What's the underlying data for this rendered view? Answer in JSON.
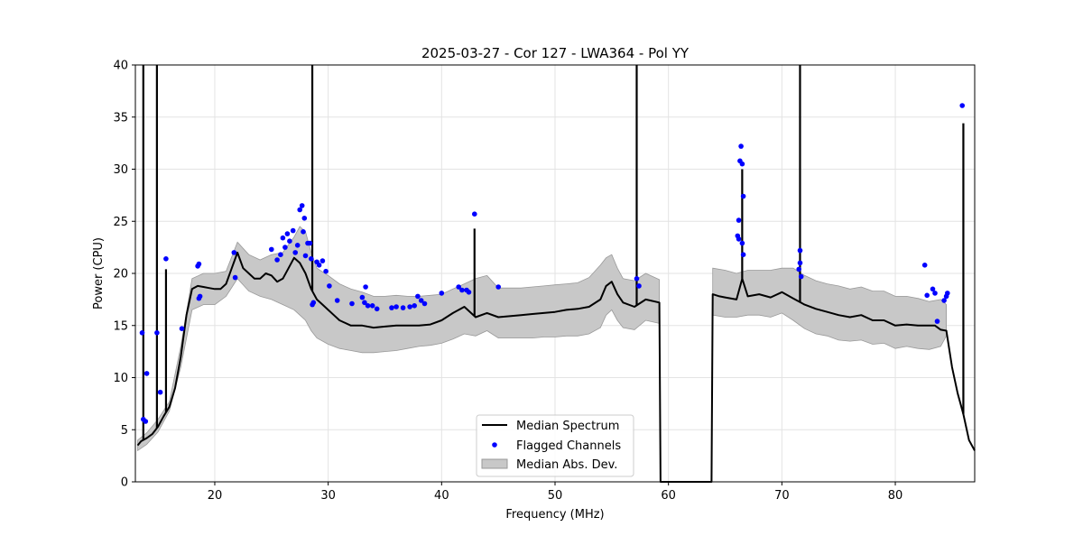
{
  "chart_data": {
    "type": "line",
    "title": "2025-03-27 - Cor 127 - LWA364 - Pol YY",
    "xlabel": "Frequency (MHz)",
    "ylabel": "Power (CPU)",
    "xlim": [
      13.0,
      87.0
    ],
    "ylim": [
      0,
      40
    ],
    "xticks": [
      20,
      30,
      40,
      50,
      60,
      70,
      80
    ],
    "yticks": [
      0,
      5,
      10,
      15,
      20,
      25,
      30,
      35,
      40
    ],
    "grid": true,
    "legend_position": "lower center",
    "colors": {
      "median": "#000000",
      "flagged": "#0000ff",
      "mad_fill": "#c8c8c8",
      "mad_edge": "#999999"
    },
    "series": [
      {
        "name": "Median Spectrum",
        "kind": "line",
        "x": [
          13.2,
          13.5,
          14.0,
          14.5,
          15.0,
          15.5,
          16.0,
          16.5,
          17.0,
          17.5,
          18.0,
          18.5,
          19.0,
          19.5,
          20.0,
          20.5,
          21.0,
          21.5,
          22.0,
          22.5,
          23.0,
          23.5,
          24.0,
          24.5,
          25.0,
          25.5,
          26.0,
          26.5,
          27.0,
          27.5,
          28.0,
          28.5,
          29.0,
          29.5,
          30.0,
          30.5,
          31.0,
          32.0,
          33.0,
          34.0,
          35.0,
          36.0,
          37.0,
          38.0,
          39.0,
          40.0,
          41.0,
          42.0,
          43.0,
          44.0,
          45.0,
          46.0,
          47.0,
          48.0,
          49.0,
          50.0,
          51.0,
          52.0,
          53.0,
          54.0,
          54.5,
          55.0,
          55.5,
          56.0,
          57.0,
          58.0,
          59.2,
          59.3,
          63.8,
          63.9,
          64.5,
          65.0,
          66.0,
          66.5,
          67.0,
          68.0,
          69.0,
          70.0,
          71.0,
          72.0,
          73.0,
          74.0,
          75.0,
          76.0,
          77.0,
          78.0,
          79.0,
          80.0,
          81.0,
          82.0,
          83.0,
          83.5,
          84.0,
          84.5,
          85.0,
          85.5,
          86.0,
          86.5,
          87.0
        ],
        "y": [
          3.5,
          3.9,
          4.2,
          4.6,
          5.3,
          6.3,
          7.2,
          9.0,
          12.0,
          16.0,
          18.5,
          18.8,
          18.7,
          18.6,
          18.5,
          18.5,
          19.0,
          20.5,
          22.0,
          20.5,
          20.0,
          19.5,
          19.5,
          20.0,
          19.8,
          19.2,
          19.5,
          20.5,
          21.5,
          21.0,
          20.0,
          18.5,
          17.5,
          17.0,
          16.5,
          16.0,
          15.5,
          15.0,
          15.0,
          14.8,
          14.9,
          15.0,
          15.0,
          15.0,
          15.1,
          15.5,
          16.2,
          16.8,
          15.8,
          16.2,
          15.8,
          15.9,
          16.0,
          16.1,
          16.2,
          16.3,
          16.5,
          16.6,
          16.8,
          17.5,
          18.8,
          19.2,
          18.0,
          17.2,
          16.8,
          17.5,
          17.2,
          0.0,
          0.0,
          18.0,
          17.8,
          17.7,
          17.5,
          19.5,
          17.8,
          18.0,
          17.7,
          18.2,
          17.6,
          17.0,
          16.6,
          16.3,
          16.0,
          15.8,
          16.0,
          15.5,
          15.5,
          15.0,
          15.1,
          15.0,
          15.0,
          15.0,
          14.6,
          14.5,
          11.0,
          8.5,
          6.5,
          4.0,
          3.0
        ],
        "spikes": [
          {
            "x": 13.7,
            "y": 40.0
          },
          {
            "x": 14.9,
            "y": 40.0
          },
          {
            "x": 15.7,
            "y": 20.4
          },
          {
            "x": 28.6,
            "y": 40.0
          },
          {
            "x": 42.9,
            "y": 24.3
          },
          {
            "x": 57.2,
            "y": 40.0
          },
          {
            "x": 66.5,
            "y": 30.0
          },
          {
            "x": 71.6,
            "y": 40.0
          },
          {
            "x": 86.0,
            "y": 34.4
          }
        ]
      },
      {
        "name": "Flagged Channels",
        "kind": "scatter",
        "points": [
          [
            13.6,
            14.3
          ],
          [
            13.7,
            6.0
          ],
          [
            13.9,
            5.8
          ],
          [
            14.0,
            10.4
          ],
          [
            14.9,
            14.3
          ],
          [
            15.2,
            8.6
          ],
          [
            15.7,
            21.4
          ],
          [
            17.1,
            14.7
          ],
          [
            18.5,
            20.7
          ],
          [
            18.6,
            20.9
          ],
          [
            18.6,
            17.6
          ],
          [
            18.7,
            17.8
          ],
          [
            21.7,
            22.0
          ],
          [
            21.8,
            19.6
          ],
          [
            25.0,
            22.3
          ],
          [
            25.5,
            21.3
          ],
          [
            25.8,
            21.8
          ],
          [
            26.0,
            23.4
          ],
          [
            26.2,
            22.5
          ],
          [
            26.4,
            23.8
          ],
          [
            26.6,
            23.1
          ],
          [
            26.9,
            24.1
          ],
          [
            27.1,
            22.0
          ],
          [
            27.3,
            22.7
          ],
          [
            27.5,
            26.1
          ],
          [
            27.7,
            26.5
          ],
          [
            27.8,
            24.0
          ],
          [
            27.9,
            25.3
          ],
          [
            28.0,
            21.7
          ],
          [
            28.2,
            22.9
          ],
          [
            28.4,
            22.9
          ],
          [
            28.5,
            21.4
          ],
          [
            28.6,
            17.0
          ],
          [
            28.7,
            17.2
          ],
          [
            29.0,
            21.1
          ],
          [
            29.2,
            20.8
          ],
          [
            29.5,
            21.2
          ],
          [
            29.8,
            20.2
          ],
          [
            30.1,
            18.8
          ],
          [
            30.8,
            17.4
          ],
          [
            32.1,
            17.1
          ],
          [
            33.0,
            17.7
          ],
          [
            33.2,
            17.2
          ],
          [
            33.3,
            18.7
          ],
          [
            33.5,
            16.9
          ],
          [
            33.9,
            16.9
          ],
          [
            34.3,
            16.6
          ],
          [
            35.6,
            16.7
          ],
          [
            36.0,
            16.8
          ],
          [
            36.6,
            16.7
          ],
          [
            37.2,
            16.8
          ],
          [
            37.6,
            16.9
          ],
          [
            37.9,
            17.8
          ],
          [
            38.2,
            17.4
          ],
          [
            38.5,
            17.1
          ],
          [
            40.0,
            18.1
          ],
          [
            41.5,
            18.7
          ],
          [
            41.8,
            18.4
          ],
          [
            42.2,
            18.4
          ],
          [
            42.4,
            18.2
          ],
          [
            42.9,
            25.7
          ],
          [
            45.0,
            18.7
          ],
          [
            57.2,
            19.5
          ],
          [
            57.4,
            18.8
          ],
          [
            66.1,
            23.6
          ],
          [
            66.2,
            23.3
          ],
          [
            66.2,
            25.1
          ],
          [
            66.3,
            30.8
          ],
          [
            66.4,
            32.2
          ],
          [
            66.5,
            30.5
          ],
          [
            66.5,
            22.9
          ],
          [
            66.6,
            27.4
          ],
          [
            66.6,
            21.8
          ],
          [
            71.5,
            20.4
          ],
          [
            71.6,
            22.2
          ],
          [
            71.6,
            21.0
          ],
          [
            71.7,
            19.7
          ],
          [
            82.6,
            20.8
          ],
          [
            82.8,
            17.9
          ],
          [
            83.3,
            18.5
          ],
          [
            83.5,
            18.1
          ],
          [
            83.7,
            15.4
          ],
          [
            84.3,
            17.4
          ],
          [
            84.5,
            17.8
          ],
          [
            84.6,
            18.1
          ],
          [
            85.9,
            36.1
          ]
        ]
      },
      {
        "name": "Median Abs. Dev.",
        "kind": "band",
        "x": [
          13.2,
          14.0,
          15.0,
          16.0,
          17.0,
          18.0,
          19.0,
          20.0,
          21.0,
          22.0,
          23.0,
          24.0,
          25.0,
          26.0,
          27.0,
          27.5,
          28.0,
          28.5,
          29.0,
          30.0,
          31.0,
          32.0,
          33.0,
          34.0,
          35.0,
          36.0,
          37.0,
          38.0,
          39.0,
          40.0,
          41.0,
          42.0,
          43.0,
          44.0,
          45.0,
          46.0,
          47.0,
          48.0,
          49.0,
          50.0,
          51.0,
          52.0,
          53.0,
          54.0,
          54.5,
          55.0,
          55.5,
          56.0,
          57.0,
          58.0,
          59.2
        ],
        "lower": [
          3.0,
          3.6,
          4.8,
          6.8,
          11.0,
          16.5,
          17.0,
          17.0,
          17.8,
          19.5,
          18.3,
          17.8,
          17.5,
          17.0,
          16.5,
          16.0,
          15.5,
          14.5,
          13.8,
          13.2,
          12.8,
          12.6,
          12.4,
          12.4,
          12.5,
          12.6,
          12.8,
          13.0,
          13.1,
          13.3,
          13.7,
          14.2,
          14.0,
          14.5,
          13.8,
          13.8,
          13.8,
          13.8,
          13.9,
          13.9,
          14.0,
          14.0,
          14.2,
          14.8,
          16.0,
          16.5,
          15.5,
          14.8,
          14.6,
          15.5,
          15.2
        ],
        "upper": [
          4.0,
          4.7,
          6.0,
          7.7,
          13.0,
          19.5,
          20.0,
          20.0,
          20.2,
          23.0,
          21.8,
          21.3,
          21.8,
          22.0,
          23.5,
          24.5,
          24.0,
          22.0,
          20.5,
          19.8,
          19.0,
          18.5,
          18.2,
          17.8,
          17.8,
          17.9,
          17.8,
          17.8,
          17.9,
          18.0,
          18.5,
          19.0,
          19.5,
          19.8,
          18.6,
          18.6,
          18.6,
          18.7,
          18.8,
          18.9,
          19.0,
          19.1,
          19.6,
          20.8,
          21.5,
          21.8,
          20.5,
          19.5,
          19.3,
          20.0,
          19.4
        ]
      },
      {
        "name": "Median Abs. Dev.",
        "kind": "band",
        "x": [
          63.9,
          65.0,
          66.0,
          67.0,
          68.0,
          69.0,
          70.0,
          71.0,
          72.0,
          73.0,
          74.0,
          75.0,
          76.0,
          77.0,
          78.0,
          79.0,
          80.0,
          81.0,
          82.0,
          83.0,
          84.0,
          84.5
        ],
        "lower": [
          16.0,
          15.8,
          15.8,
          16.0,
          16.0,
          15.8,
          16.2,
          15.5,
          14.7,
          14.2,
          14.0,
          13.6,
          13.5,
          13.6,
          13.2,
          13.3,
          12.8,
          13.0,
          12.8,
          12.7,
          13.0,
          14.0
        ],
        "upper": [
          20.5,
          20.3,
          20.0,
          20.3,
          20.3,
          20.3,
          20.5,
          20.5,
          19.8,
          19.3,
          19.0,
          18.8,
          18.5,
          18.7,
          18.3,
          18.3,
          17.8,
          17.8,
          17.6,
          17.3,
          17.5,
          17.0
        ]
      }
    ]
  }
}
